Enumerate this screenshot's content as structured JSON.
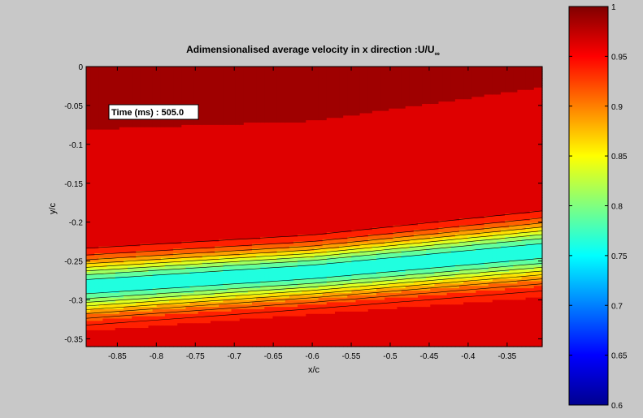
{
  "chart_data": {
    "type": "heatmap",
    "subtype": "filled-contour",
    "title_main": "Adimensionalised average velocity in x direction :U/U",
    "title_subscript": "∞",
    "xlabel": "x/c",
    "ylabel": "y/c",
    "xlim": [
      -0.89,
      -0.305
    ],
    "ylim": [
      -0.36,
      0.0
    ],
    "x_ticks": [
      -0.85,
      -0.8,
      -0.75,
      -0.7,
      -0.65,
      -0.6,
      -0.55,
      -0.5,
      -0.45,
      -0.4,
      -0.35
    ],
    "x_tick_labels": [
      "-0.85",
      "-0.8",
      "-0.75",
      "-0.7",
      "-0.65",
      "-0.6",
      "-0.55",
      "-0.5",
      "-0.45",
      "-0.4",
      "-0.35"
    ],
    "y_ticks": [
      0.0,
      -0.05,
      -0.1,
      -0.15,
      -0.2,
      -0.25,
      -0.3,
      -0.35
    ],
    "y_tick_labels": [
      "0",
      "-0.05",
      "-0.1",
      "-0.15",
      "-0.2",
      "-0.25",
      "-0.3",
      "-0.35"
    ],
    "annotation": "Time (ms) : 505.0",
    "colorbar": {
      "colormap": "jet",
      "clim": [
        0.6,
        1.0
      ],
      "ticks": [
        0.6,
        0.65,
        0.7,
        0.75,
        0.8,
        0.85,
        0.9,
        0.95,
        1.0
      ],
      "tick_labels": [
        "0.6",
        "0.65",
        "0.7",
        "0.75",
        "0.8",
        "0.85",
        "0.9",
        "0.95",
        "1"
      ]
    },
    "field": {
      "description_of_levels": "free stream about 0.97-0.98 above and below a shear layer; minimum about 0.76 in the wake core",
      "freestream_value": 0.975,
      "lower_region_value": 0.96,
      "wake_core_min": 0.76,
      "wake_centerline": [
        [
          -0.89,
          -0.283
        ],
        [
          -0.6,
          -0.264
        ],
        [
          -0.305,
          -0.237
        ]
      ],
      "wake_halfwidth": [
        [
          -0.89,
          -0.05
        ],
        [
          -0.6,
          -0.048
        ],
        [
          -0.305,
          -0.052
        ]
      ]
    },
    "grid": false,
    "colorbar_position": "right"
  }
}
